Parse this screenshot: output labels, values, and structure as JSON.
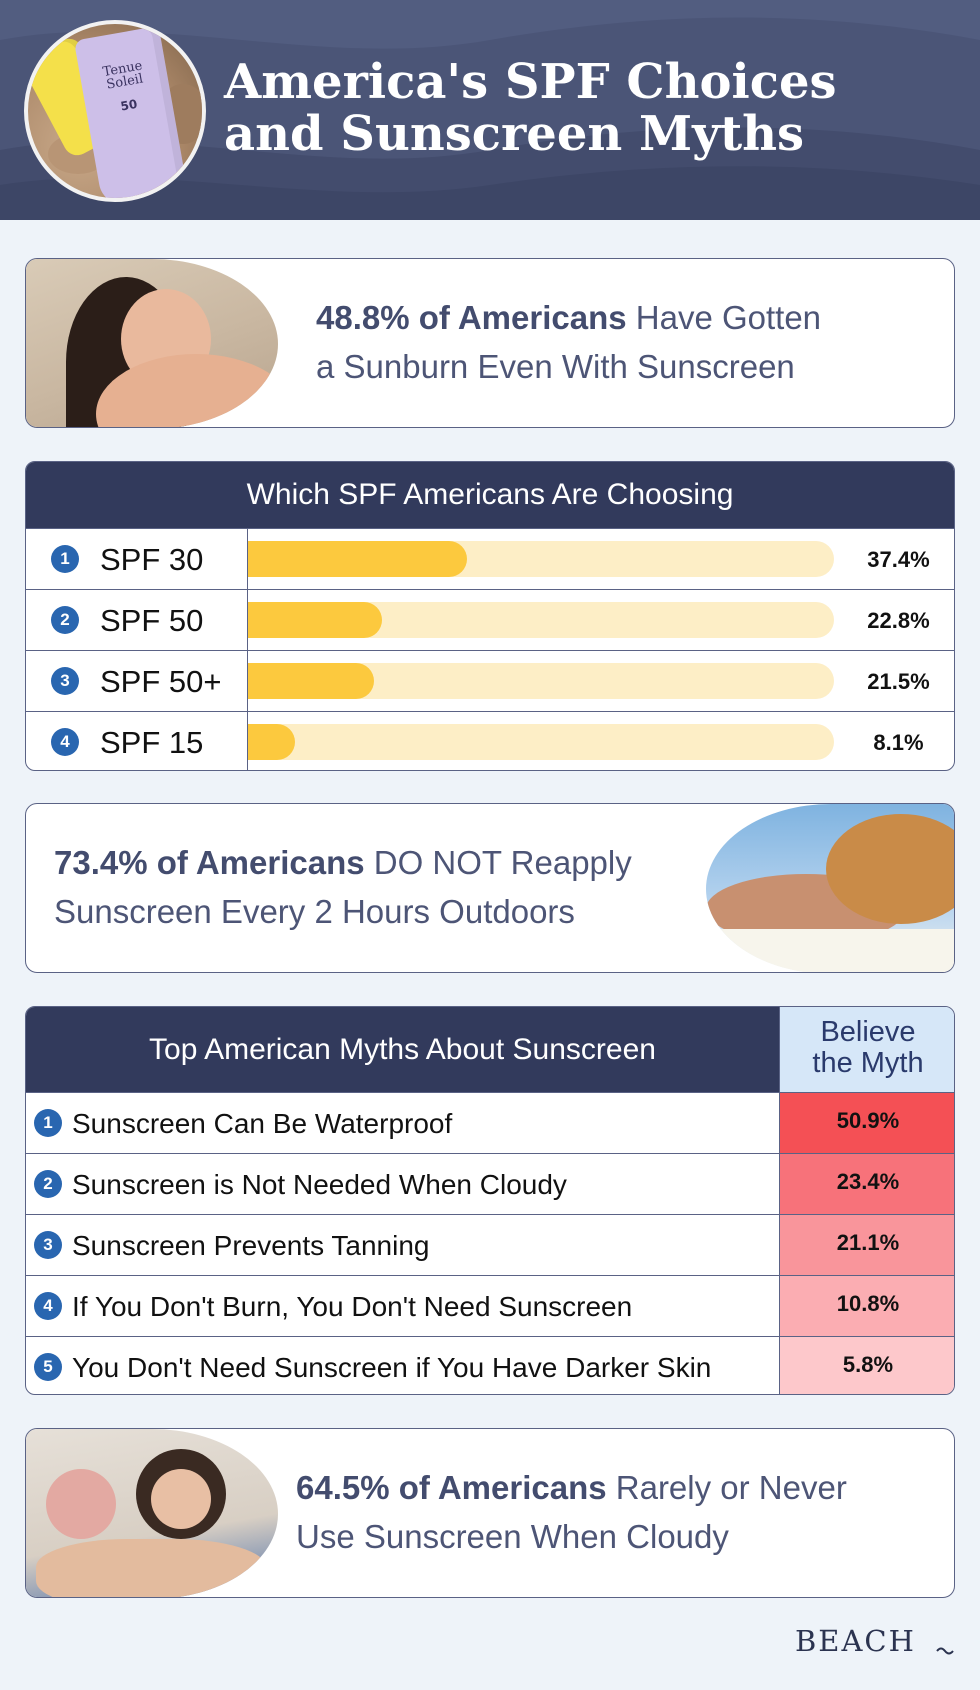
{
  "header": {
    "title": "America's SPF Choices\nand Sunscreen Myths",
    "product_brand": "Tenue\nSoleil",
    "product_spf": "50"
  },
  "stat_cards": [
    {
      "highlight": "48.8% of Americans",
      "rest": " Have Gotten\na Sunburn Even With Sunscreen"
    },
    {
      "highlight": "73.4% of Americans",
      "rest": " DO NOT Reapply\nSunscreen Every 2 Hours Outdoors"
    },
    {
      "highlight": "64.5% of Americans",
      "rest": " Rarely or Never\nUse Sunscreen When Cloudy"
    }
  ],
  "spf_table": {
    "title": "Which SPF Americans Are Choosing",
    "rows": [
      {
        "rank": "1",
        "label": "SPF 30",
        "value_label": "37.4%"
      },
      {
        "rank": "2",
        "label": "SPF 50",
        "value_label": "22.8%"
      },
      {
        "rank": "3",
        "label": "SPF 50+",
        "value_label": "21.5%"
      },
      {
        "rank": "4",
        "label": "SPF 15",
        "value_label": "8.1%"
      }
    ]
  },
  "myth_table": {
    "title": "Top American Myths About Sunscreen",
    "column_header": "Believe\nthe Myth",
    "rows": [
      {
        "rank": "1",
        "label": "Sunscreen Can Be Waterproof",
        "value_label": "50.9%",
        "color": "#f45055"
      },
      {
        "rank": "2",
        "label": "Sunscreen is Not Needed When Cloudy",
        "value_label": "23.4%",
        "color": "#f7727a"
      },
      {
        "rank": "3",
        "label": "Sunscreen Prevents Tanning",
        "value_label": "21.1%",
        "color": "#f9959b"
      },
      {
        "rank": "4",
        "label": "If You Don't Burn, You Don't Need Sunscreen",
        "value_label": "10.8%",
        "color": "#fbadb2"
      },
      {
        "rank": "5",
        "label": "You Don't Need Sunscreen if You Have Darker Skin",
        "value_label": "5.8%",
        "color": "#fdc8cb"
      }
    ]
  },
  "footer": {
    "brand": "BEACH"
  },
  "colors": {
    "header_bg": "#4b5577",
    "table_header_bg": "#323a5c",
    "bar_fill": "#fcc93e",
    "bar_track": "#fdeec6",
    "rank_badge": "#2966b0"
  },
  "chart_data": [
    {
      "type": "bar",
      "orientation": "horizontal",
      "title": "Which SPF Americans Are Choosing",
      "categories": [
        "SPF 30",
        "SPF 50",
        "SPF 50+",
        "SPF 15"
      ],
      "values": [
        37.4,
        22.8,
        21.5,
        8.1
      ],
      "unit": "%",
      "xlim": [
        0,
        100
      ]
    },
    {
      "type": "table",
      "title": "Top American Myths About Sunscreen",
      "columns": [
        "Top American Myths About Sunscreen",
        "Believe the Myth"
      ],
      "categories": [
        "Sunscreen Can Be Waterproof",
        "Sunscreen is Not Needed When Cloudy",
        "Sunscreen Prevents Tanning",
        "If You Don't Burn, You Don't Need Sunscreen",
        "You Don't Need Sunscreen if You Have Darker Skin"
      ],
      "values": [
        50.9,
        23.4,
        21.1,
        10.8,
        5.8
      ],
      "unit": "%"
    }
  ]
}
